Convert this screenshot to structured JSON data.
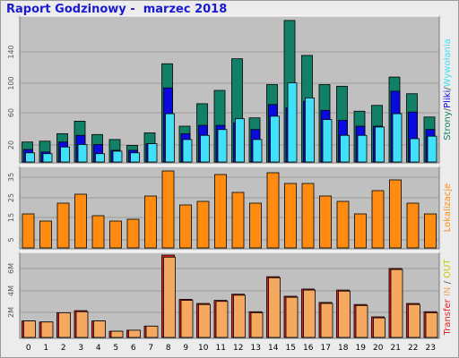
{
  "page": {
    "title": "Raport Godzinowy -  marzec 2018"
  },
  "colors": {
    "background": "#ececec",
    "plot_bg": "#c0c0c0",
    "strony": "#118066",
    "pliki": "#0a0ae0",
    "wywolania": "#40e0f8",
    "kb": "#ff8c10",
    "transfer_out": "#e02020",
    "transfer_in": "#f4a860"
  },
  "chart_data": [
    {
      "type": "bar",
      "title": "Raport Godzinowy -  marzec 2018",
      "ylabel": "Strony/Pliki/Wywołania",
      "ylabel_parts": [
        "Strony",
        "/",
        "Pliki",
        "/",
        "Wywołania"
      ],
      "yticks": [
        "20",
        "60",
        "100",
        "140"
      ],
      "ylim": [
        0,
        172
      ],
      "grid": true,
      "categories": [
        "0",
        "1",
        "2",
        "3",
        "4",
        "5",
        "6",
        "7",
        "8",
        "9",
        "10",
        "11",
        "12",
        "13",
        "14",
        "15",
        "16",
        "17",
        "18",
        "19",
        "20",
        "21",
        "22",
        "23"
      ],
      "series": [
        {
          "name": "Strony",
          "values": [
            24,
            25,
            34,
            49,
            33,
            27,
            20,
            35,
            118,
            43,
            70,
            86,
            124,
            53,
            93,
            170,
            128,
            93,
            91,
            61,
            68,
            102,
            82,
            54
          ]
        },
        {
          "name": "Pliki",
          "values": [
            15,
            12,
            24,
            32,
            21,
            14,
            14,
            22,
            89,
            34,
            44,
            44,
            47,
            39,
            69,
            65,
            73,
            62,
            50,
            43,
            43,
            85,
            60,
            39
          ]
        },
        {
          "name": "Wywołania",
          "values": [
            11,
            10,
            18,
            21,
            10,
            13,
            11,
            22,
            58,
            27,
            32,
            39,
            52,
            27,
            55,
            95,
            77,
            51,
            32,
            32,
            42,
            58,
            28,
            31
          ]
        }
      ]
    },
    {
      "type": "bar",
      "ylabel": "Lokalizacje",
      "yticks": [
        "5",
        "15",
        "25",
        "35"
      ],
      "ylim": [
        0,
        44
      ],
      "grid": true,
      "categories": [
        "0",
        "1",
        "2",
        "3",
        "4",
        "5",
        "6",
        "7",
        "8",
        "9",
        "10",
        "11",
        "12",
        "13",
        "14",
        "15",
        "16",
        "17",
        "18",
        "19",
        "20",
        "21",
        "22",
        "23"
      ],
      "series": [
        {
          "name": "Lokalizacje",
          "values": [
            19,
            15,
            25,
            30,
            18,
            15,
            16,
            29,
            43,
            24,
            26,
            41,
            31,
            25,
            42,
            36,
            36,
            29,
            26,
            19,
            32,
            38,
            25,
            19
          ]
        }
      ]
    },
    {
      "type": "bar",
      "ylabel": "Transfer  IN / OUT",
      "ylabel_parts": [
        "Transfer",
        "  IN",
        " / ",
        "OUT"
      ],
      "yticks": [
        "2M",
        "4M",
        "6M"
      ],
      "ylim": [
        0,
        8
      ],
      "grid": true,
      "categories": [
        "0",
        "1",
        "2",
        "3",
        "4",
        "5",
        "6",
        "7",
        "8",
        "9",
        "10",
        "11",
        "12",
        "13",
        "14",
        "15",
        "16",
        "17",
        "18",
        "19",
        "20",
        "21",
        "22",
        "23"
      ],
      "series": [
        {
          "name": "OUT",
          "values": [
            1.6,
            1.5,
            2.4,
            2.6,
            1.6,
            0.6,
            0.7,
            1.1,
            8.0,
            3.7,
            3.3,
            3.6,
            4.2,
            2.5,
            5.9,
            4.0,
            4.7,
            3.4,
            4.6,
            3.2,
            2.0,
            6.7,
            3.3,
            2.5
          ]
        },
        {
          "name": "IN",
          "values": [
            1.6,
            1.5,
            2.4,
            2.5,
            1.6,
            0.6,
            0.7,
            1.1,
            7.8,
            3.6,
            3.2,
            3.5,
            4.1,
            2.4,
            5.8,
            3.9,
            4.6,
            3.3,
            4.5,
            3.1,
            1.9,
            6.6,
            3.2,
            2.4
          ]
        }
      ]
    }
  ]
}
